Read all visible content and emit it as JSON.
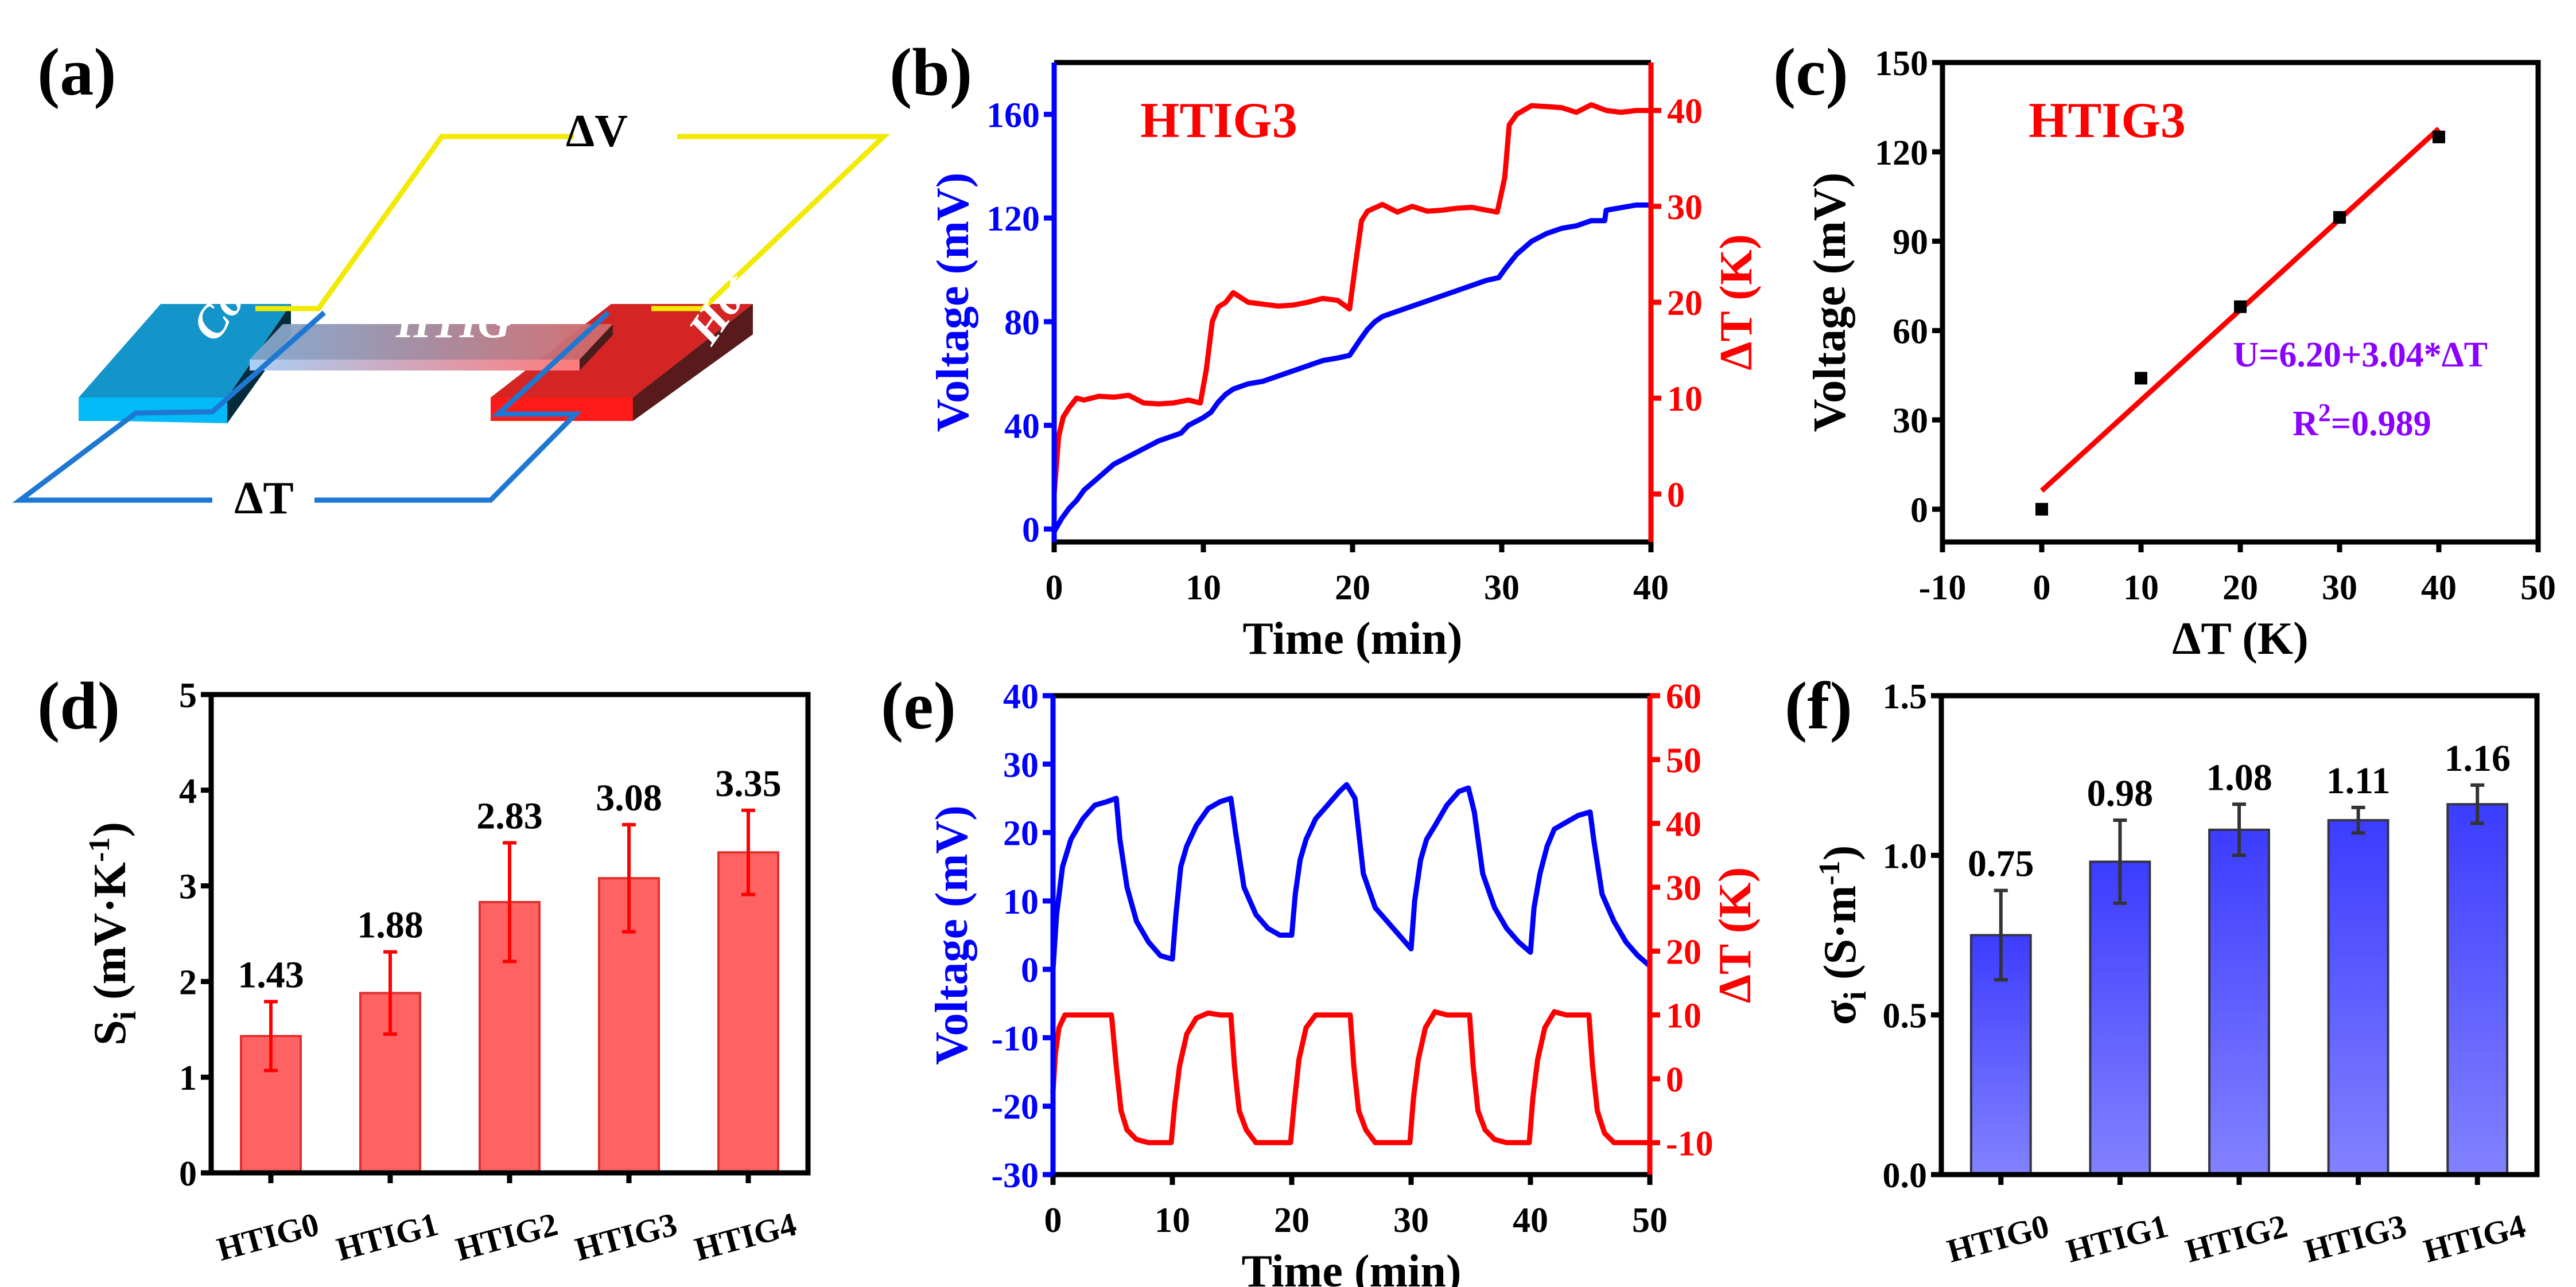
{
  "colors": {
    "blue": "#0000FF",
    "red": "#FF0000",
    "black": "#000000",
    "purple": "#8B00FF",
    "bar_red": "#FF6262",
    "bar_blue_top": "#3C3CFF",
    "bar_blue_bottom": "#8282FF",
    "wire_yellow": "#F2EA00",
    "wire_blue": "#1E78D2",
    "cold_top": "#1395C9",
    "cold_front": "#02BAF7",
    "cold_side": "#032B3B",
    "hot_top": "#D42424",
    "hot_front": "#FF1A1A",
    "hot_side": "#581A1A"
  },
  "panel_letters": [
    "(a)",
    "(b)",
    "(c)",
    "(d)",
    "(e)",
    "(f)"
  ],
  "schematic": {
    "cold_label": "Cold",
    "hot_label": "Hot",
    "sample_label": "HTIG",
    "voltage_label": "ΔV",
    "temp_label": "ΔT"
  },
  "chart_data": [
    {
      "id": "b",
      "type": "line",
      "annotation": "HTIG3",
      "xlabel": "Time (min)",
      "ylabel": "Voltage (mV)",
      "y2label": "ΔT (K)",
      "xlim": [
        0,
        40
      ],
      "ylim": [
        -5,
        180
      ],
      "y2lim": [
        -5,
        45
      ],
      "xticks": [
        0,
        10,
        20,
        30,
        40
      ],
      "yticks": [
        0,
        40,
        80,
        120,
        160
      ],
      "y2ticks": [
        0,
        10,
        20,
        30,
        40
      ],
      "series": [
        {
          "name": "Voltage",
          "axis": "left",
          "color": "#0000FF",
          "x": [
            0,
            0.5,
            1,
            1.5,
            2,
            3,
            4,
            5,
            6,
            7,
            8,
            8.5,
            9,
            10,
            10.5,
            11,
            11.5,
            12,
            13,
            14,
            15,
            16,
            17,
            18,
            19,
            19.8,
            20.5,
            21,
            21.5,
            22,
            23,
            24,
            25,
            26,
            27,
            28,
            29,
            29.8,
            30.3,
            31,
            32,
            33,
            34,
            35,
            36,
            36.9,
            37,
            38,
            39,
            40
          ],
          "y": [
            -1,
            4,
            8,
            11,
            15,
            20,
            25,
            28,
            31,
            34,
            36,
            37,
            40,
            43,
            45,
            49,
            52,
            54,
            56,
            57,
            59,
            61,
            63,
            65,
            66,
            67,
            73,
            77,
            80,
            82,
            84,
            86,
            88,
            90,
            92,
            94,
            96,
            97,
            101,
            106,
            111,
            114,
            116,
            117,
            119,
            119,
            123,
            124,
            125,
            125
          ]
        },
        {
          "name": "ΔT",
          "axis": "right",
          "color": "#FF0000",
          "x": [
            0,
            0.3,
            0.6,
            1,
            1.5,
            2,
            3,
            4,
            5,
            6,
            7,
            8,
            9,
            9.8,
            10.2,
            10.6,
            11,
            11.5,
            12,
            13,
            14,
            15,
            16,
            17,
            18,
            19,
            19.8,
            20.2,
            20.6,
            21,
            22,
            23,
            24,
            25,
            26,
            27,
            28,
            29,
            29.7,
            30.2,
            30.5,
            31,
            32,
            33,
            34,
            35,
            36,
            37,
            38,
            39,
            40
          ],
          "y": [
            0,
            6,
            8,
            9,
            10,
            9.8,
            10.2,
            10.1,
            10.3,
            9.5,
            9.4,
            9.5,
            9.8,
            9.5,
            13,
            18,
            19.5,
            20,
            21,
            20,
            19.8,
            19.6,
            19.7,
            20,
            20.4,
            20.2,
            19.3,
            24,
            28.5,
            29.5,
            30.2,
            29.4,
            30,
            29.5,
            29.6,
            29.8,
            29.9,
            29.6,
            29.4,
            33,
            38.5,
            39.6,
            40.5,
            40.4,
            40.3,
            39.8,
            40.6,
            40,
            39.8,
            40,
            40
          ]
        }
      ]
    },
    {
      "id": "c",
      "type": "scatter",
      "annotation": "HTIG3",
      "xlabel": "ΔT (K)",
      "ylabel": "Voltage (mV)",
      "xlim": [
        -10,
        50
      ],
      "ylim": [
        -11,
        150
      ],
      "xticks": [
        -10,
        0,
        10,
        20,
        30,
        40,
        50
      ],
      "yticks": [
        0,
        30,
        60,
        90,
        120,
        150
      ],
      "points": {
        "x": [
          0,
          10,
          20,
          30,
          40
        ],
        "y": [
          0,
          44,
          68,
          98,
          125
        ]
      },
      "fit": {
        "intercept": 6.2,
        "slope": 3.04,
        "x_range": [
          0,
          40
        ],
        "color": "#FF0000"
      },
      "equation": "U=6.20+3.04*ΔT",
      "r2_prefix": "R",
      "r2_sup": "2",
      "r2_value": "=0.989"
    },
    {
      "id": "d",
      "type": "bar",
      "ylabel_main": "S",
      "ylabel_sub": "i",
      "ylabel_unit": " (mV·K",
      "ylabel_sup": "-1",
      "ylabel_close": ")",
      "ylim": [
        0,
        5
      ],
      "yticks": [
        0,
        1,
        2,
        3,
        4,
        5
      ],
      "categories": [
        "HTIG0",
        "HTIG1",
        "HTIG2",
        "HTIG3",
        "HTIG4"
      ],
      "values": [
        1.43,
        1.88,
        2.83,
        3.08,
        3.35
      ],
      "value_labels": [
        "1.43",
        "1.88",
        "2.83",
        "3.08",
        "3.35"
      ],
      "errors": [
        0.36,
        0.43,
        0.62,
        0.56,
        0.44
      ],
      "bar_color": "#FF6262",
      "error_color": "#FF0000"
    },
    {
      "id": "e",
      "type": "line",
      "xlabel": "Time (min)",
      "ylabel": "Voltage (mV)",
      "y2label": "ΔT (K)",
      "xlim": [
        0,
        50
      ],
      "ylim": [
        -30,
        40
      ],
      "y2lim": [
        -15,
        60
      ],
      "xticks": [
        0,
        10,
        20,
        30,
        40,
        50
      ],
      "yticks": [
        -30,
        -20,
        -10,
        0,
        10,
        20,
        30,
        40
      ],
      "y2ticks": [
        -10,
        0,
        10,
        20,
        30,
        40,
        50,
        60
      ],
      "series": [
        {
          "name": "Voltage",
          "axis": "left",
          "color": "#0000FF",
          "x": [
            0,
            0.3,
            0.8,
            1.5,
            2.5,
            3.5,
            4.5,
            5.3,
            5.6,
            6.2,
            7,
            8,
            9,
            10,
            10.3,
            10.7,
            11.2,
            12,
            13,
            14,
            14.9,
            15.3,
            16,
            17,
            18,
            19,
            20,
            20.3,
            20.7,
            21.2,
            22,
            23,
            24,
            24.6,
            25.3,
            26,
            27,
            28,
            29,
            30,
            30.3,
            30.8,
            31.3,
            32,
            33,
            34,
            34.8,
            35.3,
            36,
            37,
            38,
            39,
            40,
            40.3,
            40.8,
            41.4,
            42,
            43,
            44,
            45,
            45.3,
            46,
            47,
            48,
            49,
            50
          ],
          "y": [
            0,
            8,
            15,
            19,
            22,
            24,
            24.5,
            25,
            19,
            12,
            7,
            4,
            2,
            1.5,
            8,
            15,
            18,
            21,
            23.5,
            24.5,
            25,
            20,
            12,
            8,
            6,
            5,
            5,
            11,
            16,
            19,
            22,
            24,
            26,
            27,
            25,
            14,
            9,
            7,
            5,
            3,
            10,
            16,
            19,
            21,
            24,
            26,
            26.5,
            23,
            14,
            9,
            6,
            4,
            2.5,
            9,
            14,
            18,
            20.5,
            21.5,
            22.5,
            23,
            19,
            11,
            7,
            4,
            2,
            0.5
          ]
        },
        {
          "name": "ΔT",
          "axis": "right",
          "color": "#FF0000",
          "x": [
            0,
            0.2,
            0.5,
            1,
            2,
            3,
            4,
            4.9,
            5.3,
            5.7,
            6.2,
            7,
            8,
            9,
            9.9,
            10.2,
            10.6,
            11.2,
            12,
            13,
            14,
            14.9,
            15.2,
            15.6,
            16.2,
            17,
            18,
            19,
            19.9,
            20.2,
            20.6,
            21.2,
            22,
            23,
            24,
            24.9,
            25.2,
            25.6,
            26.2,
            27,
            28,
            29,
            29.9,
            30.2,
            30.6,
            31.2,
            32,
            33,
            34,
            34.9,
            35.2,
            35.6,
            36.2,
            37,
            38,
            39,
            39.9,
            40.2,
            40.6,
            41.2,
            42,
            43,
            44,
            44.9,
            45.2,
            45.6,
            46.2,
            47,
            48,
            49,
            50
          ],
          "y": [
            -2,
            4,
            8,
            10,
            10,
            10,
            10,
            10,
            2,
            -5,
            -8,
            -9.5,
            -10,
            -10,
            -10,
            -4,
            2,
            7,
            9.5,
            10.3,
            10,
            10,
            2,
            -5,
            -8,
            -10,
            -10,
            -10,
            -10,
            -4,
            3,
            8,
            10,
            10,
            10,
            10,
            2,
            -5,
            -8,
            -10,
            -10,
            -10,
            -10,
            -3,
            3,
            8,
            10.5,
            10,
            10,
            10,
            2,
            -5,
            -8,
            -9.5,
            -10,
            -10,
            -10,
            -3,
            3,
            8,
            10.5,
            10,
            10,
            10,
            2,
            -5,
            -8.5,
            -10,
            -10,
            -10,
            -10
          ]
        }
      ]
    },
    {
      "id": "f",
      "type": "bar",
      "ylabel_main": "σ",
      "ylabel_sub": "i",
      "ylabel_unit": " (S·m",
      "ylabel_sup": "-1",
      "ylabel_close": ")",
      "ylim": [
        0,
        1.5
      ],
      "yticks": [
        0.0,
        0.5,
        1.0,
        1.5
      ],
      "ytick_labels": [
        "0.0",
        "0.5",
        "1.0",
        "1.5"
      ],
      "categories": [
        "HTIG0",
        "HTIG1",
        "HTIG2",
        "HTIG3",
        "HTIG4"
      ],
      "values": [
        0.75,
        0.98,
        1.08,
        1.11,
        1.16
      ],
      "value_labels": [
        "0.75",
        "0.98",
        "1.08",
        "1.11",
        "1.16"
      ],
      "errors": [
        0.14,
        0.13,
        0.08,
        0.04,
        0.06
      ],
      "bar_color_top": "#3C3CFF",
      "bar_color_bottom": "#8282FF",
      "error_color": "#333333"
    }
  ]
}
